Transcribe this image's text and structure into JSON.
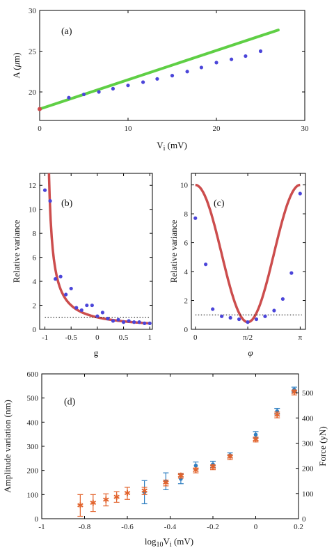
{
  "chart_data": [
    {
      "id": "a",
      "type": "scatter",
      "panel_label": "(a)",
      "xlabel": "V_i (mV)",
      "ylabel": "A (μm)",
      "xlim": [
        0,
        30
      ],
      "ylim": [
        16.5,
        30
      ],
      "xticks": [
        "0",
        "10",
        "20",
        "30"
      ],
      "yticks": [
        "20",
        "25",
        "30"
      ],
      "xtick_values": [
        0,
        10,
        20,
        30
      ],
      "ytick_values": [
        20,
        25,
        30
      ],
      "grid": false,
      "points_x": [
        3.3,
        5,
        6.7,
        8.3,
        10,
        11.7,
        13.3,
        15,
        16.7,
        18.3,
        20,
        21.7,
        23.3,
        25
      ],
      "points_y": [
        19.3,
        19.7,
        20.0,
        20.4,
        20.8,
        21.2,
        21.6,
        22.0,
        22.5,
        23.0,
        23.6,
        24.0,
        24.4,
        25.0
      ],
      "fit": {
        "x": [
          0,
          27
        ],
        "y": [
          17.9,
          27.6
        ],
        "color": "#5fcf45"
      },
      "origin_point": {
        "x": 0,
        "y": 17.9,
        "color": "#d04a4a"
      }
    },
    {
      "id": "b",
      "type": "scatter",
      "panel_label": "(b)",
      "xlabel": "g",
      "ylabel": "Relative variance",
      "xlim": [
        -1.1,
        1.05
      ],
      "ylim": [
        0,
        13
      ],
      "xticks": [
        "-1",
        "-0.5",
        "0",
        "0.5",
        "1"
      ],
      "yticks": [
        "0",
        "2",
        "4",
        "6",
        "8",
        "10",
        "12"
      ],
      "xtick_values": [
        -1,
        -0.5,
        0,
        0.5,
        1
      ],
      "ytick_values": [
        0,
        2,
        4,
        6,
        8,
        10,
        12
      ],
      "grid": false,
      "points_x": [
        -1,
        -0.9,
        -0.8,
        -0.7,
        -0.6,
        -0.5,
        -0.4,
        -0.3,
        -0.2,
        -0.1,
        0,
        0.1,
        0.2,
        0.3,
        0.4,
        0.5,
        0.6,
        0.7,
        0.8,
        0.9,
        1
      ],
      "points_y": [
        11.6,
        10.7,
        4.2,
        4.4,
        2.9,
        3.4,
        1.8,
        1.6,
        2.0,
        2.0,
        1.1,
        1.4,
        0.9,
        0.7,
        0.8,
        0.6,
        0.7,
        0.6,
        0.6,
        0.5,
        0.5
      ],
      "curve": "1/(1+g)",
      "reference_line_y": 1
    },
    {
      "id": "c",
      "type": "scatter",
      "panel_label": "(c)",
      "xlabel": "φ",
      "ylabel": "Relative variance",
      "xlim": [
        -0.12,
        3.3
      ],
      "ylim": [
        0,
        10.8
      ],
      "xticks": [
        "0",
        "π/2",
        "π"
      ],
      "yticks": [
        "0",
        "2",
        "4",
        "6",
        "8",
        "10"
      ],
      "xtick_values": [
        0,
        1.5708,
        3.1416
      ],
      "ytick_values": [
        0,
        2,
        4,
        6,
        8,
        10
      ],
      "grid": false,
      "points_x": [
        0,
        0.31,
        0.52,
        0.79,
        1.05,
        1.31,
        1.57,
        1.83,
        2.09,
        2.36,
        2.62,
        2.88,
        3.14
      ],
      "points_y": [
        7.7,
        4.5,
        1.4,
        0.9,
        0.8,
        0.7,
        0.5,
        0.7,
        0.9,
        1.3,
        2.1,
        3.9,
        9.4
      ],
      "curve": "cos²φ/G + G·sin²φ",
      "reference_line_y": 1
    },
    {
      "id": "d",
      "type": "scatter",
      "panel_label": "(d)",
      "xlabel": "log₁₀V_i (mV)",
      "ylabel": "Amplitude variation (nm)",
      "y2label": "Force (yN)",
      "xlim": [
        -1,
        0.2
      ],
      "ylim": [
        0,
        600
      ],
      "y2lim": [
        0,
        575
      ],
      "xticks": [
        "-1",
        "-0.8",
        "-0.6",
        "-0.4",
        "-0.2",
        "0",
        "0.2"
      ],
      "yticks": [
        "0",
        "100",
        "200",
        "300",
        "400",
        "500",
        "600"
      ],
      "y2ticks": [
        "0",
        "100",
        "200",
        "300",
        "400",
        "500"
      ],
      "xtick_values": [
        -1,
        -0.8,
        -0.6,
        -0.4,
        -0.2,
        0,
        0.2
      ],
      "ytick_values": [
        0,
        100,
        200,
        300,
        400,
        500,
        600
      ],
      "y2tick_values": [
        0,
        100,
        200,
        300,
        400,
        500
      ],
      "grid": false,
      "series": [
        {
          "color": "#2f7fc1",
          "marker": "dot",
          "x": [
            -0.52,
            -0.42,
            -0.35,
            -0.28,
            -0.2,
            -0.12,
            0,
            0.1,
            0.18
          ],
          "y": [
            110,
            155,
            165,
            220,
            225,
            263,
            348,
            445,
            535
          ],
          "err": [
            48,
            35,
            20,
            15,
            13,
            10,
            13,
            12,
            10
          ]
        },
        {
          "color": "#e2632c",
          "marker": "star",
          "x": [
            -0.82,
            -0.76,
            -0.7,
            -0.65,
            -0.6,
            -0.52,
            -0.42,
            -0.35,
            -0.28,
            -0.2,
            -0.12,
            0,
            0.1,
            0.18
          ],
          "y": [
            55,
            65,
            78,
            90,
            105,
            115,
            148,
            178,
            200,
            213,
            255,
            328,
            430,
            523
          ],
          "err": [
            45,
            35,
            25,
            22,
            25,
            15,
            12,
            10,
            10,
            10,
            10,
            10,
            12,
            10
          ]
        }
      ]
    }
  ]
}
